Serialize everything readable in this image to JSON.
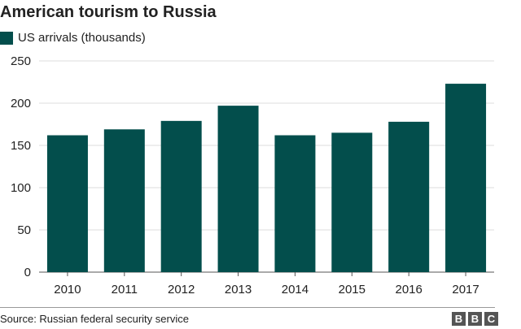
{
  "chart_data": {
    "type": "bar",
    "title": "American tourism to Russia",
    "categories": [
      "2010",
      "2011",
      "2012",
      "2013",
      "2014",
      "2015",
      "2016",
      "2017"
    ],
    "series": [
      {
        "name": "US arrivals (thousands)",
        "values": [
          162,
          169,
          179,
          197,
          162,
          165,
          178,
          223
        ]
      }
    ],
    "xlabel": "",
    "ylabel": "",
    "ylim": [
      0,
      250
    ],
    "yticks": [
      "0",
      "50",
      "100",
      "150",
      "200",
      "250"
    ],
    "grid": true,
    "legend_position": "top-left",
    "bar_color": "#034e4c"
  },
  "footer": {
    "source": "Source: Russian federal security service",
    "logo_letters": [
      "B",
      "B",
      "C"
    ]
  }
}
